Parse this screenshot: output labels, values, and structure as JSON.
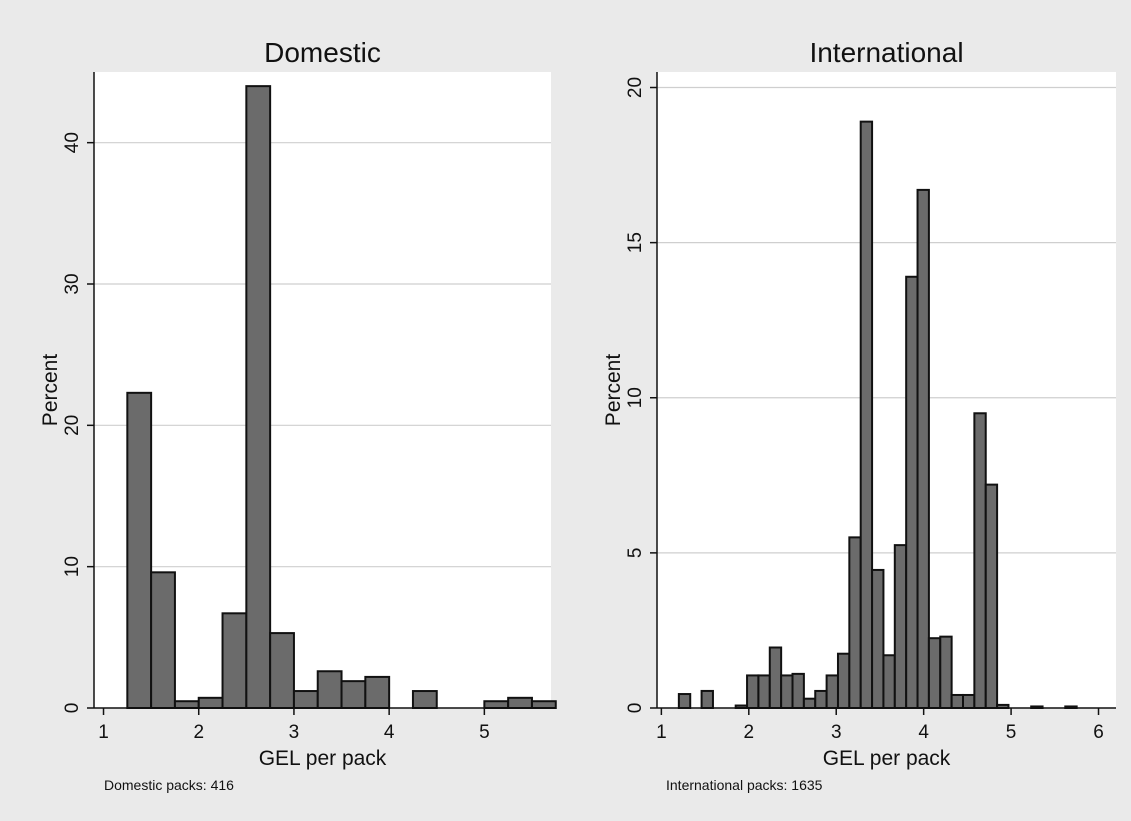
{
  "chart_data": [
    {
      "type": "bar",
      "title": "Domestic",
      "xlabel": "GEL per pack",
      "ylabel": "Percent",
      "xlim": [
        0.9,
        5.7
      ],
      "ylim": [
        0,
        45
      ],
      "xticks": [
        1,
        2,
        3,
        4,
        5
      ],
      "yticks": [
        0,
        10,
        20,
        30,
        40
      ],
      "grid": true,
      "note": "Domestic packs: 416",
      "bin_width": 0.25,
      "bins": [
        {
          "start": 1.25,
          "value": 22.3
        },
        {
          "start": 1.5,
          "value": 9.6
        },
        {
          "start": 1.75,
          "value": 0.48
        },
        {
          "start": 2.0,
          "value": 0.72
        },
        {
          "start": 2.25,
          "value": 6.7
        },
        {
          "start": 2.5,
          "value": 44.0
        },
        {
          "start": 2.75,
          "value": 5.3
        },
        {
          "start": 3.0,
          "value": 1.2
        },
        {
          "start": 3.25,
          "value": 2.6
        },
        {
          "start": 3.5,
          "value": 1.9
        },
        {
          "start": 3.75,
          "value": 2.2
        },
        {
          "start": 4.25,
          "value": 1.2
        },
        {
          "start": 5.0,
          "value": 0.48
        },
        {
          "start": 5.25,
          "value": 0.72
        },
        {
          "start": 5.5,
          "value": 0.48
        }
      ]
    },
    {
      "type": "bar",
      "title": "International",
      "xlabel": "GEL per pack",
      "ylabel": "Percent",
      "xlim": [
        0.95,
        6.2
      ],
      "ylim": [
        0,
        20.5
      ],
      "xticks": [
        1,
        2,
        3,
        4,
        5,
        6
      ],
      "yticks": [
        0,
        5,
        10,
        15,
        20
      ],
      "grid": true,
      "note": "International packs: 1635",
      "bin_width": 0.13,
      "bins": [
        {
          "start": 1.2,
          "value": 0.45
        },
        {
          "start": 1.46,
          "value": 0.55
        },
        {
          "start": 1.85,
          "value": 0.08
        },
        {
          "start": 1.98,
          "value": 1.05
        },
        {
          "start": 2.11,
          "value": 1.05
        },
        {
          "start": 2.24,
          "value": 1.95
        },
        {
          "start": 2.37,
          "value": 1.05
        },
        {
          "start": 2.5,
          "value": 1.1
        },
        {
          "start": 2.63,
          "value": 0.3
        },
        {
          "start": 2.76,
          "value": 0.55
        },
        {
          "start": 2.89,
          "value": 1.05
        },
        {
          "start": 3.02,
          "value": 1.75
        },
        {
          "start": 3.15,
          "value": 5.5
        },
        {
          "start": 3.28,
          "value": 18.9
        },
        {
          "start": 3.41,
          "value": 4.45
        },
        {
          "start": 3.54,
          "value": 1.7
        },
        {
          "start": 3.67,
          "value": 5.25
        },
        {
          "start": 3.8,
          "value": 13.9
        },
        {
          "start": 3.93,
          "value": 16.7
        },
        {
          "start": 4.06,
          "value": 2.25
        },
        {
          "start": 4.19,
          "value": 2.3
        },
        {
          "start": 4.32,
          "value": 0.42
        },
        {
          "start": 4.45,
          "value": 0.42
        },
        {
          "start": 4.58,
          "value": 9.5
        },
        {
          "start": 4.71,
          "value": 7.2
        },
        {
          "start": 4.84,
          "value": 0.1
        },
        {
          "start": 5.23,
          "value": 0.05
        },
        {
          "start": 5.62,
          "value": 0.05
        }
      ]
    }
  ],
  "style": {
    "page_background": "#eaeaea",
    "plot_background": "#ffffff",
    "gridline_color": "#cfcfcf",
    "bar_fill": "#6b6b6b",
    "bar_stroke": "#111111"
  }
}
